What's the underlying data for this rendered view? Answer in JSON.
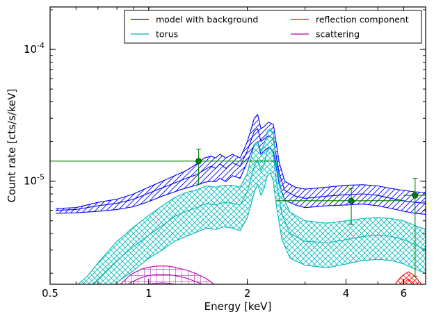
{
  "chart_data": {
    "type": "line",
    "xlabel": "Energy [keV]",
    "ylabel": "Count rate [cts/s/keV]",
    "xscale": "log",
    "yscale": "log",
    "xlim": [
      0.5,
      7.0
    ],
    "ylim": [
      1.65e-06,
      0.00021
    ],
    "grid": false,
    "legend_position": "top-right",
    "x_ticks": [
      {
        "value": 0.5,
        "label": "0.5"
      },
      {
        "value": 1,
        "label": "1"
      },
      {
        "value": 2,
        "label": "2"
      },
      {
        "value": 4,
        "label": "4"
      },
      {
        "value": 6,
        "label": "6"
      }
    ],
    "y_ticks": [
      {
        "value": 1e-05,
        "base": "10",
        "exp": "-5"
      },
      {
        "value": 0.0001,
        "base": "10",
        "exp": "-4"
      }
    ],
    "series": [
      {
        "name": "model with background",
        "color": "#0000ff",
        "hatch": "diagonal",
        "x": [
          0.52,
          0.6,
          0.7,
          0.8,
          0.9,
          1.0,
          1.1,
          1.2,
          1.3,
          1.4,
          1.48,
          1.55,
          1.6,
          1.65,
          1.72,
          1.8,
          1.9,
          2.0,
          2.1,
          2.15,
          2.2,
          2.25,
          2.32,
          2.4,
          2.5,
          2.6,
          2.8,
          3.0,
          3.5,
          4.0,
          4.5,
          5.0,
          5.5,
          6.0,
          6.5,
          7.0
        ],
        "upper": [
          6.2e-06,
          6.3e-06,
          6.9e-06,
          7.3e-06,
          8e-06,
          9e-06,
          1e-05,
          1.1e-05,
          1.2e-05,
          1.35e-05,
          1.5e-05,
          1.55e-05,
          1.5e-05,
          1.6e-05,
          1.5e-05,
          1.6e-05,
          1.5e-05,
          2e-05,
          3e-05,
          3.2e-05,
          2.5e-05,
          2.6e-05,
          2.8e-05,
          2.7e-05,
          1.4e-05,
          1e-05,
          9e-06,
          8.7e-06,
          9e-06,
          9.3e-06,
          9.4e-06,
          9.2e-06,
          8.8e-06,
          8.5e-06,
          8.3e-06,
          8.2e-06
        ],
        "values": [
          6e-06,
          6.1e-06,
          6.5e-06,
          6.8e-06,
          7.3e-06,
          8.1e-06,
          8.9e-06,
          9.7e-06,
          1.05e-05,
          1.12e-05,
          1.22e-05,
          1.3e-05,
          1.25e-05,
          1.35e-05,
          1.25e-05,
          1.38e-05,
          1.3e-05,
          1.7e-05,
          2.4e-05,
          2.5e-05,
          2e-05,
          2.1e-05,
          2.2e-05,
          2.1e-05,
          1.15e-05,
          8.5e-06,
          7.7e-06,
          7.4e-06,
          7.7e-06,
          7.9e-06,
          8e-06,
          7.8e-06,
          7.4e-06,
          7.1e-06,
          6.9e-06,
          6.8e-06
        ],
        "lower": [
          5.7e-06,
          5.75e-06,
          5.9e-06,
          6.1e-06,
          6.4e-06,
          7e-06,
          7.7e-06,
          8.3e-06,
          8.9e-06,
          9.3e-06,
          9.8e-06,
          1e-05,
          9.9e-06,
          1.05e-05,
          9.9e-06,
          1.1e-05,
          1.05e-05,
          1.4e-05,
          1.9e-05,
          2e-05,
          1.6e-05,
          1.7e-05,
          1.8e-05,
          1.7e-05,
          9.5e-06,
          7.2e-06,
          6.6e-06,
          6.3e-06,
          6.5e-06,
          6.6e-06,
          6.7e-06,
          6.5e-06,
          6.2e-06,
          5.9e-06,
          5.7e-06,
          5.6e-06
        ]
      },
      {
        "name": "torus",
        "color": "#00b8b8",
        "hatch": "crosshatch",
        "x": [
          0.6,
          0.65,
          0.7,
          0.8,
          0.9,
          1.0,
          1.1,
          1.2,
          1.3,
          1.4,
          1.5,
          1.6,
          1.7,
          1.8,
          1.9,
          2.0,
          2.1,
          2.15,
          2.2,
          2.25,
          2.3,
          2.35,
          2.4,
          2.45,
          2.55,
          2.7,
          3.0,
          3.5,
          4.0,
          4.5,
          5.0,
          5.5,
          6.0,
          6.5,
          7.0
        ],
        "upper": [
          1.6e-06,
          1.9e-06,
          2.4e-06,
          3.5e-06,
          4.5e-06,
          5.5e-06,
          6.5e-06,
          7.5e-06,
          8.2e-06,
          8.6e-06,
          9.2e-06,
          9e-06,
          9.3e-06,
          9.3e-06,
          9e-06,
          1.15e-05,
          1.9e-05,
          2e-05,
          1.7e-05,
          1.9e-05,
          2.4e-05,
          2.5e-05,
          2.3e-05,
          1.4e-05,
          8e-06,
          5.8e-06,
          5e-06,
          4.8e-06,
          5e-06,
          5.2e-06,
          5.3e-06,
          5.2e-06,
          5e-06,
          4.6e-06,
          4.3e-06
        ],
        "values": [
          1.3e-06,
          1.5e-06,
          1.8e-06,
          2.5e-06,
          3.2e-06,
          3.9e-06,
          4.6e-06,
          5.4e-06,
          5.9e-06,
          6.3e-06,
          6.8e-06,
          6.6e-06,
          6.9e-06,
          6.8e-06,
          6.6e-06,
          8.3e-06,
          1.3e-05,
          1.45e-05,
          1.2e-05,
          1.35e-05,
          1.7e-05,
          1.8e-05,
          1.6e-05,
          1e-05,
          5.6e-06,
          4e-06,
          3.5e-06,
          3.4e-06,
          3.6e-06,
          3.8e-06,
          3.9e-06,
          3.8e-06,
          3.6e-06,
          3.3e-06,
          3e-06
        ],
        "lower": [
          1e-06,
          1.1e-06,
          1.3e-06,
          1.7e-06,
          2.1e-06,
          2.6e-06,
          3e-06,
          3.5e-06,
          3.8e-06,
          4.1e-06,
          4.4e-06,
          4.3e-06,
          4.5e-06,
          4.4e-06,
          4.2e-06,
          5.3e-06,
          8.2e-06,
          9.5e-06,
          7.8e-06,
          8.8e-06,
          1.1e-05,
          1.15e-05,
          1e-05,
          6.6e-06,
          3.6e-06,
          2.6e-06,
          2.3e-06,
          2.2e-06,
          2.35e-06,
          2.5e-06,
          2.55e-06,
          2.5e-06,
          2.35e-06,
          2.15e-06,
          2e-06
        ]
      },
      {
        "name": "reflection component",
        "color": "#ff0000",
        "hatch": "crosshatch-fine",
        "x": [
          5.6,
          5.8,
          6.0,
          6.2,
          6.4,
          6.6,
          6.8,
          7.0
        ],
        "upper": [
          1.6e-06,
          1.8e-06,
          1.95e-06,
          2.05e-06,
          1.95e-06,
          1.8e-06,
          1.65e-06,
          1.55e-06
        ],
        "values": [
          1.4e-06,
          1.55e-06,
          1.7e-06,
          1.8e-06,
          1.7e-06,
          1.55e-06,
          1.45e-06,
          1.35e-06
        ],
        "lower": [
          1.2e-06,
          1.35e-06,
          1.5e-06,
          1.6e-06,
          1.5e-06,
          1.35e-06,
          1.25e-06,
          1.15e-06
        ]
      },
      {
        "name": "scattering",
        "color": "#b000b0",
        "hatch": "grid",
        "x": [
          0.82,
          0.88,
          0.95,
          1.0,
          1.05,
          1.1,
          1.15,
          1.2,
          1.3,
          1.4,
          1.5,
          1.6
        ],
        "upper": [
          1.65e-06,
          1.95e-06,
          2.15e-06,
          2.22e-06,
          2.26e-06,
          2.27e-06,
          2.26e-06,
          2.22e-06,
          2.12e-06,
          1.98e-06,
          1.82e-06,
          1.62e-06
        ],
        "values": [
          1.45e-06,
          1.7e-06,
          1.85e-06,
          1.92e-06,
          1.95e-06,
          1.96e-06,
          1.95e-06,
          1.92e-06,
          1.84e-06,
          1.72e-06,
          1.6e-06,
          1.45e-06
        ],
        "lower": [
          1.25e-06,
          1.45e-06,
          1.6e-06,
          1.65e-06,
          1.68e-06,
          1.69e-06,
          1.68e-06,
          1.65e-06,
          1.58e-06,
          1.48e-06,
          1.38e-06,
          1.25e-06
        ]
      }
    ],
    "data_points": {
      "color": "#008000",
      "points": [
        {
          "x": 1.42,
          "y": 1.42e-05,
          "xlo": 0.5,
          "xhi": 2.45,
          "ylo": 9.5e-06,
          "yhi": 1.75e-05
        },
        {
          "x": 4.15,
          "y": 7.1e-06,
          "xlo": 2.45,
          "xhi": 6.0,
          "ylo": 4.7e-06,
          "yhi": 8.8e-06
        },
        {
          "x": 6.5,
          "y": 7.8e-06,
          "xlo": 6.0,
          "xhi": 7.0,
          "ylo": 1.9e-06,
          "yhi": 1.05e-05
        }
      ]
    }
  }
}
